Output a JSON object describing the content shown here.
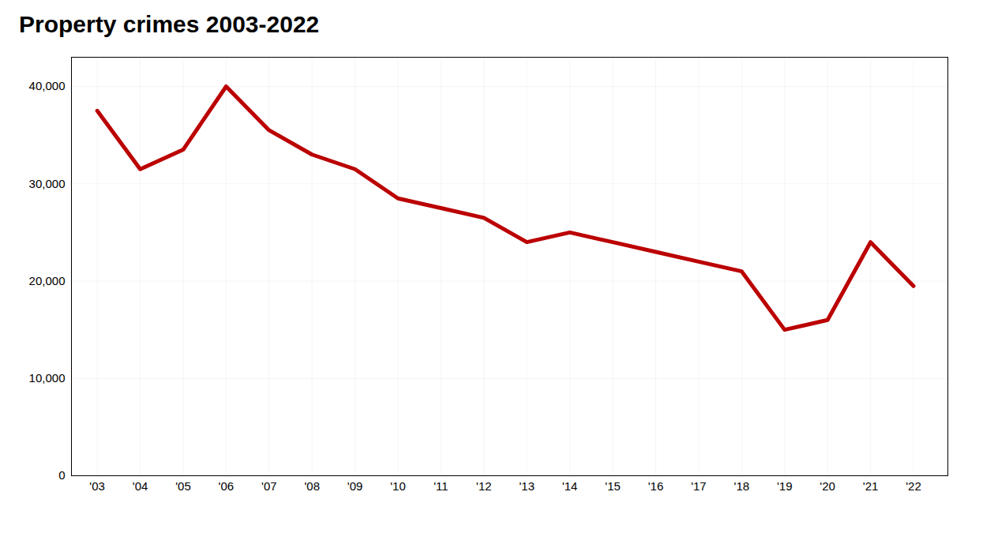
{
  "chart_data": {
    "type": "line",
    "title": "Property crimes 2003-2022",
    "x": [
      2003,
      2004,
      2005,
      2006,
      2007,
      2008,
      2009,
      2010,
      2011,
      2012,
      2013,
      2014,
      2015,
      2016,
      2017,
      2018,
      2019,
      2020,
      2021,
      2022
    ],
    "values": [
      37500,
      31500,
      33500,
      40000,
      35500,
      33000,
      31500,
      28500,
      27500,
      26500,
      24000,
      25000,
      24000,
      23000,
      22000,
      21000,
      15000,
      16000,
      24000,
      19500
    ],
    "color": "#bb0000",
    "xlim": [
      2002.4,
      2022.8
    ],
    "xticks": [
      {
        "value": 2003,
        "label": "'03"
      },
      {
        "value": 2004,
        "label": "'04"
      },
      {
        "value": 2005,
        "label": "'05"
      },
      {
        "value": 2006,
        "label": "'06"
      },
      {
        "value": 2007,
        "label": "'07"
      },
      {
        "value": 2008,
        "label": "'08"
      },
      {
        "value": 2009,
        "label": "'09"
      },
      {
        "value": 2010,
        "label": "'10"
      },
      {
        "value": 2011,
        "label": "'11"
      },
      {
        "value": 2012,
        "label": "'12"
      },
      {
        "value": 2013,
        "label": "'13"
      },
      {
        "value": 2014,
        "label": "'14"
      },
      {
        "value": 2015,
        "label": "'15"
      },
      {
        "value": 2016,
        "label": "'16"
      },
      {
        "value": 2017,
        "label": "'17"
      },
      {
        "value": 2018,
        "label": "'18"
      },
      {
        "value": 2019,
        "label": "'19"
      },
      {
        "value": 2020,
        "label": "'20"
      },
      {
        "value": 2021,
        "label": "'21"
      },
      {
        "value": 2022,
        "label": "'22"
      }
    ],
    "ylim": [
      0,
      43000
    ],
    "yticks": [
      0,
      {
        "value": 10000,
        "label": "10,000"
      },
      {
        "value": 20000,
        "label": "20,000"
      },
      {
        "value": 30000,
        "label": "30,000"
      },
      {
        "value": 40000,
        "label": "40,000"
      }
    ],
    "grid": true
  }
}
